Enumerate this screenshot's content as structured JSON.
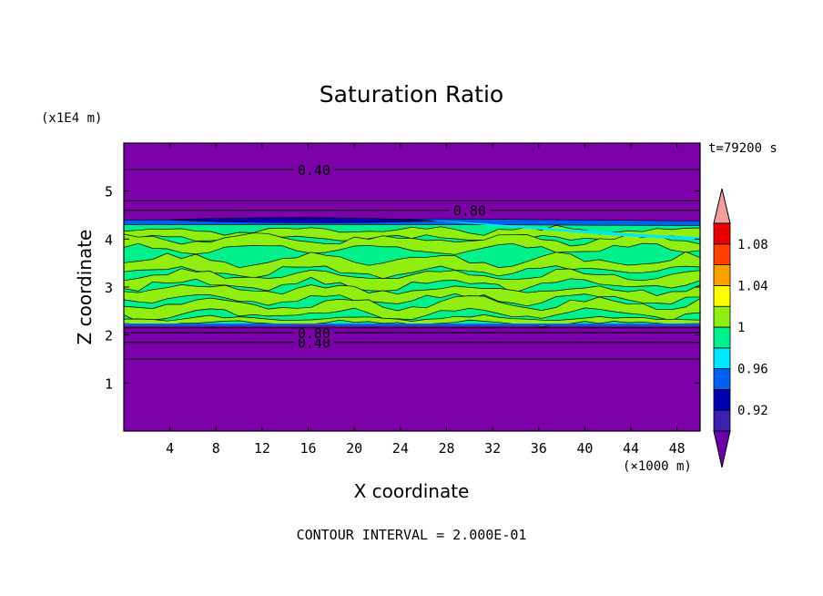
{
  "chart_data": {
    "type": "heatmap",
    "title": "Saturation Ratio",
    "xlabel": "X coordinate",
    "ylabel": "Z coordinate",
    "x_unit_label": "(×1000 m)",
    "y_unit_label": "(x1E4 m)",
    "time_label": "t=79200 s",
    "footer": "CONTOUR INTERVAL = 2.000E-01",
    "xlim": [
      0,
      50
    ],
    "ylim": [
      0,
      6
    ],
    "x_ticks": [
      4,
      8,
      12,
      16,
      20,
      24,
      28,
      32,
      36,
      40,
      44,
      48
    ],
    "y_ticks": [
      1,
      2,
      3,
      4,
      5
    ],
    "contour_lines": [
      {
        "z": 1.5,
        "label": ""
      },
      {
        "z": 1.85,
        "label": "0.40"
      },
      {
        "z": 2.05,
        "label": "0.80"
      },
      {
        "z": 2.15,
        "label": ""
      },
      {
        "z": 4.6,
        "label": "0.80"
      },
      {
        "z": 4.8,
        "label": ""
      },
      {
        "z": 5.45,
        "label": "0.40"
      }
    ],
    "colorbar": {
      "tick_labels": [
        "0.92",
        "0.96",
        "1",
        "1.04",
        "1.08"
      ],
      "tick_values": [
        0.92,
        0.96,
        1.0,
        1.04,
        1.08
      ],
      "levels": [
        0.9,
        0.92,
        0.94,
        0.96,
        0.98,
        1.0,
        1.02,
        1.04,
        1.06,
        1.08,
        1.1
      ],
      "colors": [
        "#6a00a8",
        "#3b20b0",
        "#0000b0",
        "#0060f0",
        "#00e8ff",
        "#00f08c",
        "#90ee10",
        "#ffff00",
        "#ffa000",
        "#ff4000",
        "#e80000",
        "#f0a0a0"
      ]
    },
    "bands": [
      {
        "z0": 0.0,
        "z1": 2.2,
        "level": "<0.90",
        "color": "#7b00a8"
      },
      {
        "z0": 2.2,
        "z1": 4.35,
        "level": "0.98-1.02",
        "color": "#00f08c"
      },
      {
        "z0": 4.35,
        "z1": 6.0,
        "level": "<0.90",
        "color": "#7b00a8"
      }
    ]
  }
}
